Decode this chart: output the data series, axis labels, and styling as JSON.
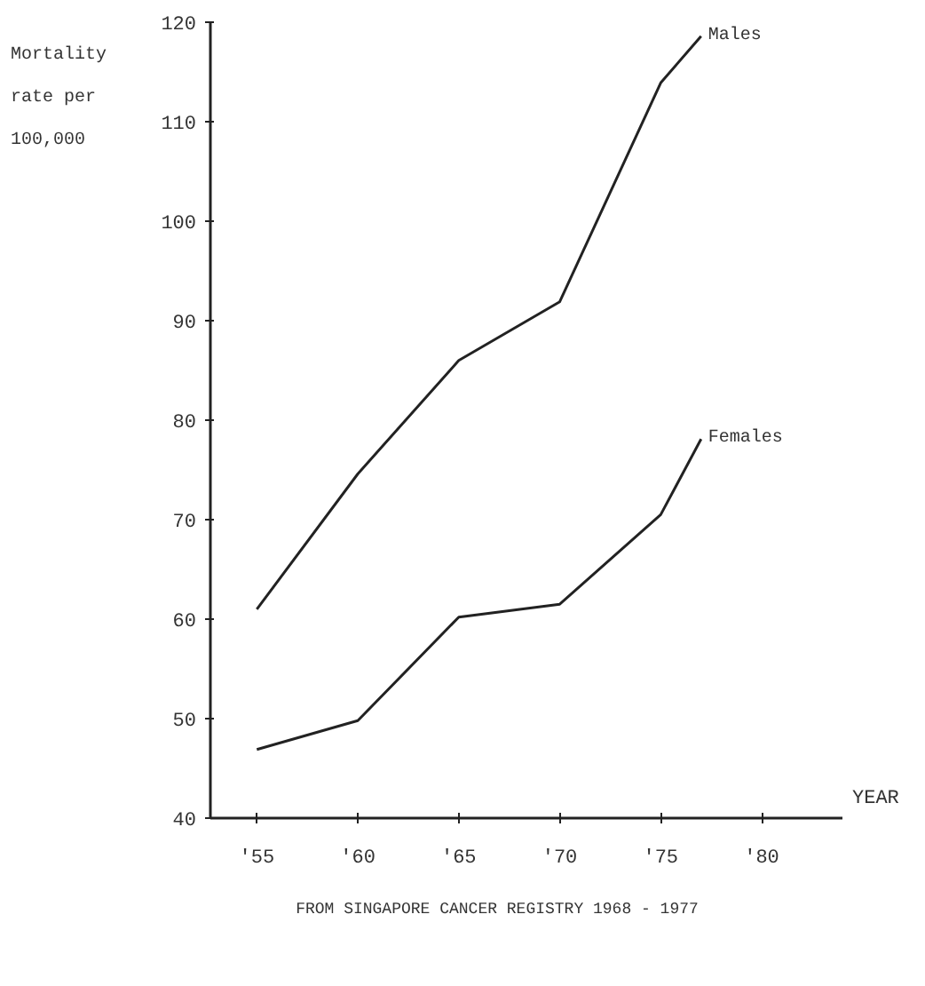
{
  "chart_data": {
    "type": "line",
    "xlabel": "YEAR",
    "ylabel": "Mortality rate per 100,000",
    "annotations": [
      "FROM SINGAPORE CANCER REGISTRY 1968 - 1977"
    ],
    "series": [
      {
        "name": "Males",
        "color": "#222222",
        "x": [
          1955,
          1960,
          1965,
          1970,
          1975,
          1977
        ],
        "values": [
          61,
          74.6,
          86,
          91.9,
          113.9,
          118.6
        ]
      },
      {
        "name": "Females",
        "color": "#222222",
        "x": [
          1955,
          1960,
          1965,
          1970,
          1975,
          1977
        ],
        "values": [
          46.9,
          49.8,
          60.2,
          61.5,
          70.5,
          78.1
        ]
      }
    ],
    "xlim": [
      1952.7,
      1984
    ],
    "ylim": [
      40,
      120
    ],
    "xticks": [
      {
        "value": 1955,
        "label": "'55"
      },
      {
        "value": 1960,
        "label": "'60"
      },
      {
        "value": 1965,
        "label": "'65"
      },
      {
        "value": 1970,
        "label": "'70"
      },
      {
        "value": 1975,
        "label": "'75"
      },
      {
        "value": 1980,
        "label": "'80"
      }
    ],
    "yticks": [
      40,
      50,
      60,
      70,
      80,
      90,
      100,
      110,
      120
    ],
    "grid": false,
    "legend": false,
    "marker": "none",
    "line_style": "solid"
  }
}
